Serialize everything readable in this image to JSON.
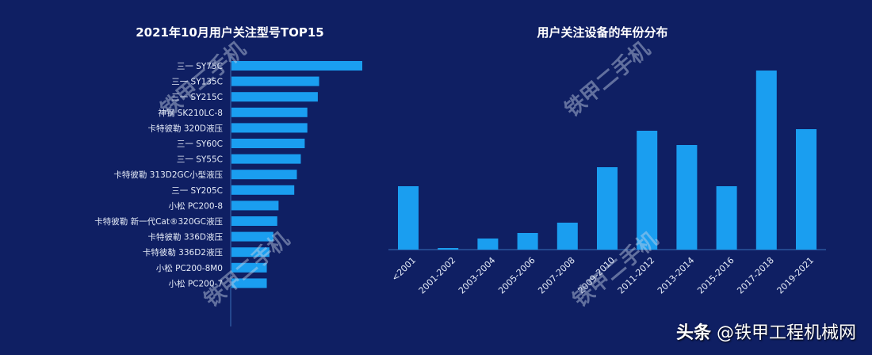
{
  "chart_data": [
    {
      "type": "bar",
      "orientation": "horizontal",
      "title": "2021年10月用户关注型号TOP15",
      "categories": [
        "三一 SY75C",
        "三一 SY135C",
        "三一 SY215C",
        "神钢 SK210LC-8",
        "卡特彼勒 320D液压",
        "三一 SY60C",
        "三一 SY55C",
        "卡特彼勒 313D2GC小型液压",
        "三一 SY205C",
        "小松 PC200-8",
        "卡特彼勒 新一代Cat®320GC液压",
        "卡特彼勒 336D液压",
        "卡特彼勒 336D2液压",
        "小松 PC200-8M0",
        "小松 PC200-7"
      ],
      "values": [
        100,
        67,
        66,
        58,
        58,
        56,
        53,
        50,
        48,
        36,
        35,
        32,
        29,
        27,
        27
      ],
      "grid": false,
      "color": "#1a9ef0"
    },
    {
      "type": "bar",
      "title": "用户关注设备的年份分布",
      "categories": [
        "<2001",
        "2001-2002",
        "2003-2004",
        "2005-2006",
        "2007-2008",
        "2009-2010",
        "2011-2012",
        "2013-2014",
        "2015-2016",
        "2017-2018",
        "2019-2021"
      ],
      "values": [
        80,
        2,
        14,
        21,
        34,
        104,
        150,
        132,
        80,
        226,
        152
      ],
      "grid": false,
      "color": "#1a9ef0"
    }
  ],
  "watermark": "铁甲二手机",
  "footer": {
    "brand": "头条",
    "account": "@铁甲工程机械网"
  },
  "colors": {
    "background": "#0f1f63",
    "bar": "#1a9ef0",
    "axis": "#3a6fb8"
  }
}
